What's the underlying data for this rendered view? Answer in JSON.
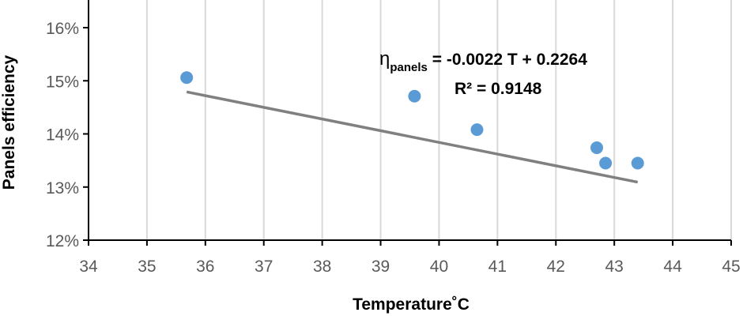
{
  "chart_data": {
    "type": "scatter",
    "xlabel": "Temperature˚C",
    "ylabel": "Panels efficiency",
    "xlim": [
      34,
      45
    ],
    "ylim": [
      0.12,
      0.16
    ],
    "x_ticks": [
      34,
      35,
      36,
      37,
      38,
      39,
      40,
      41,
      42,
      43,
      44,
      45
    ],
    "y_ticks": [
      0.12,
      0.13,
      0.14,
      0.15,
      0.16
    ],
    "y_tick_labels": [
      "12%",
      "13%",
      "14%",
      "15%",
      "16%"
    ],
    "grid": "vertical",
    "series": [
      {
        "color": "#5b9bd5",
        "points": [
          {
            "x": 35.68,
            "y": 0.1506
          },
          {
            "x": 39.58,
            "y": 0.1471
          },
          {
            "x": 40.65,
            "y": 0.1408
          },
          {
            "x": 42.7,
            "y": 0.1374
          },
          {
            "x": 42.85,
            "y": 0.1345
          },
          {
            "x": 43.4,
            "y": 0.1345
          }
        ]
      }
    ],
    "trendline": {
      "slope": -0.0022,
      "intercept": 0.2264,
      "x_range": [
        35.68,
        43.4
      ],
      "color": "#808080",
      "equation_symbol": "η",
      "equation_subscript": "panels",
      "equation_rest": " = -0.0022 T + 0.2264",
      "r_squared_label": "R² = 0.9148"
    }
  }
}
